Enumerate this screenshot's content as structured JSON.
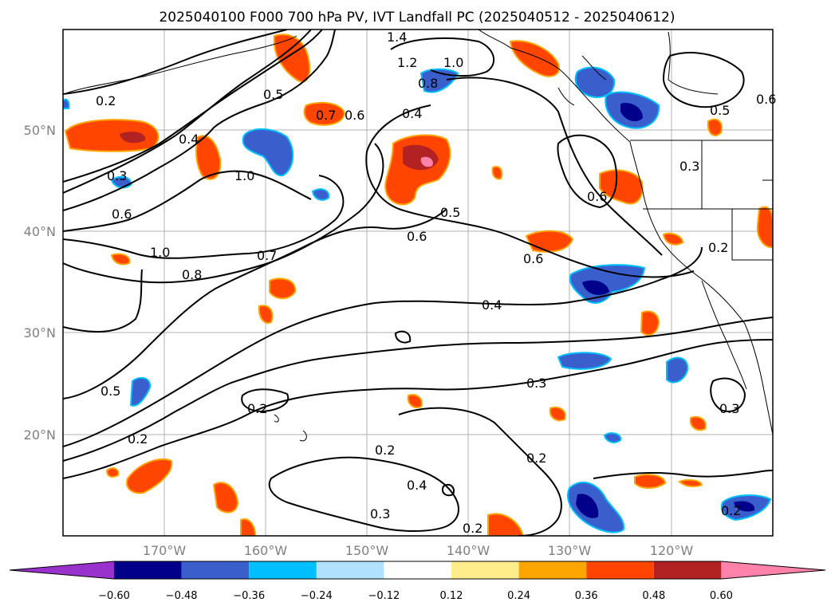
{
  "title": "2025040100 F000 700 hPa PV, IVT Landfall PC (2025040512 - 2025040612)",
  "latitude_labels": [
    "50°N",
    "40°N",
    "30°N",
    "20°N"
  ],
  "longitude_labels": [
    "170°W",
    "160°W",
    "150°W",
    "140°W",
    "130°W",
    "120°W"
  ],
  "colorbar": {
    "tick_labels": [
      "−0.60",
      "−0.48",
      "−0.36",
      "−0.24",
      "−0.12",
      "0.12",
      "0.24",
      "0.36",
      "0.48",
      "0.60"
    ],
    "colors": [
      "#9932cc",
      "#00008b",
      "#3a5fcd",
      "#00bfff",
      "#b0e2ff",
      "#ffffff",
      "#ffec8b",
      "#ffa500",
      "#ff4500",
      "#b22222",
      "#ff82ab"
    ]
  },
  "contour_labels": [
    "1.4",
    "1.2",
    "1.0",
    "0.8",
    "0.2",
    "0.5",
    "0.7",
    "0.6",
    "0.4",
    "0.5",
    "0.6",
    "0.4",
    "1.0",
    "0.3",
    "0.3",
    "0.6",
    "0.5",
    "0.6",
    "0.6",
    "0.2",
    "1.0",
    "0.7",
    "0.8",
    "0.6",
    "0.4",
    "0.5",
    "0.2",
    "0.2",
    "0.3",
    "0.3",
    "0.2",
    "0.2",
    "0.4",
    "0.3",
    "0.2",
    "0.2"
  ],
  "chart_data": {
    "type": "map",
    "projection": "PlateCarree",
    "lon_range": [
      -180,
      -110
    ],
    "lat_range": [
      10,
      60
    ],
    "gridlines": true,
    "contour_field": "700 hPa PV",
    "shaded_field": "IVT Landfall PC",
    "shading_levels": [
      -0.6,
      -0.48,
      -0.36,
      -0.24,
      -0.12,
      0.12,
      0.24,
      0.36,
      0.48,
      0.6
    ]
  }
}
